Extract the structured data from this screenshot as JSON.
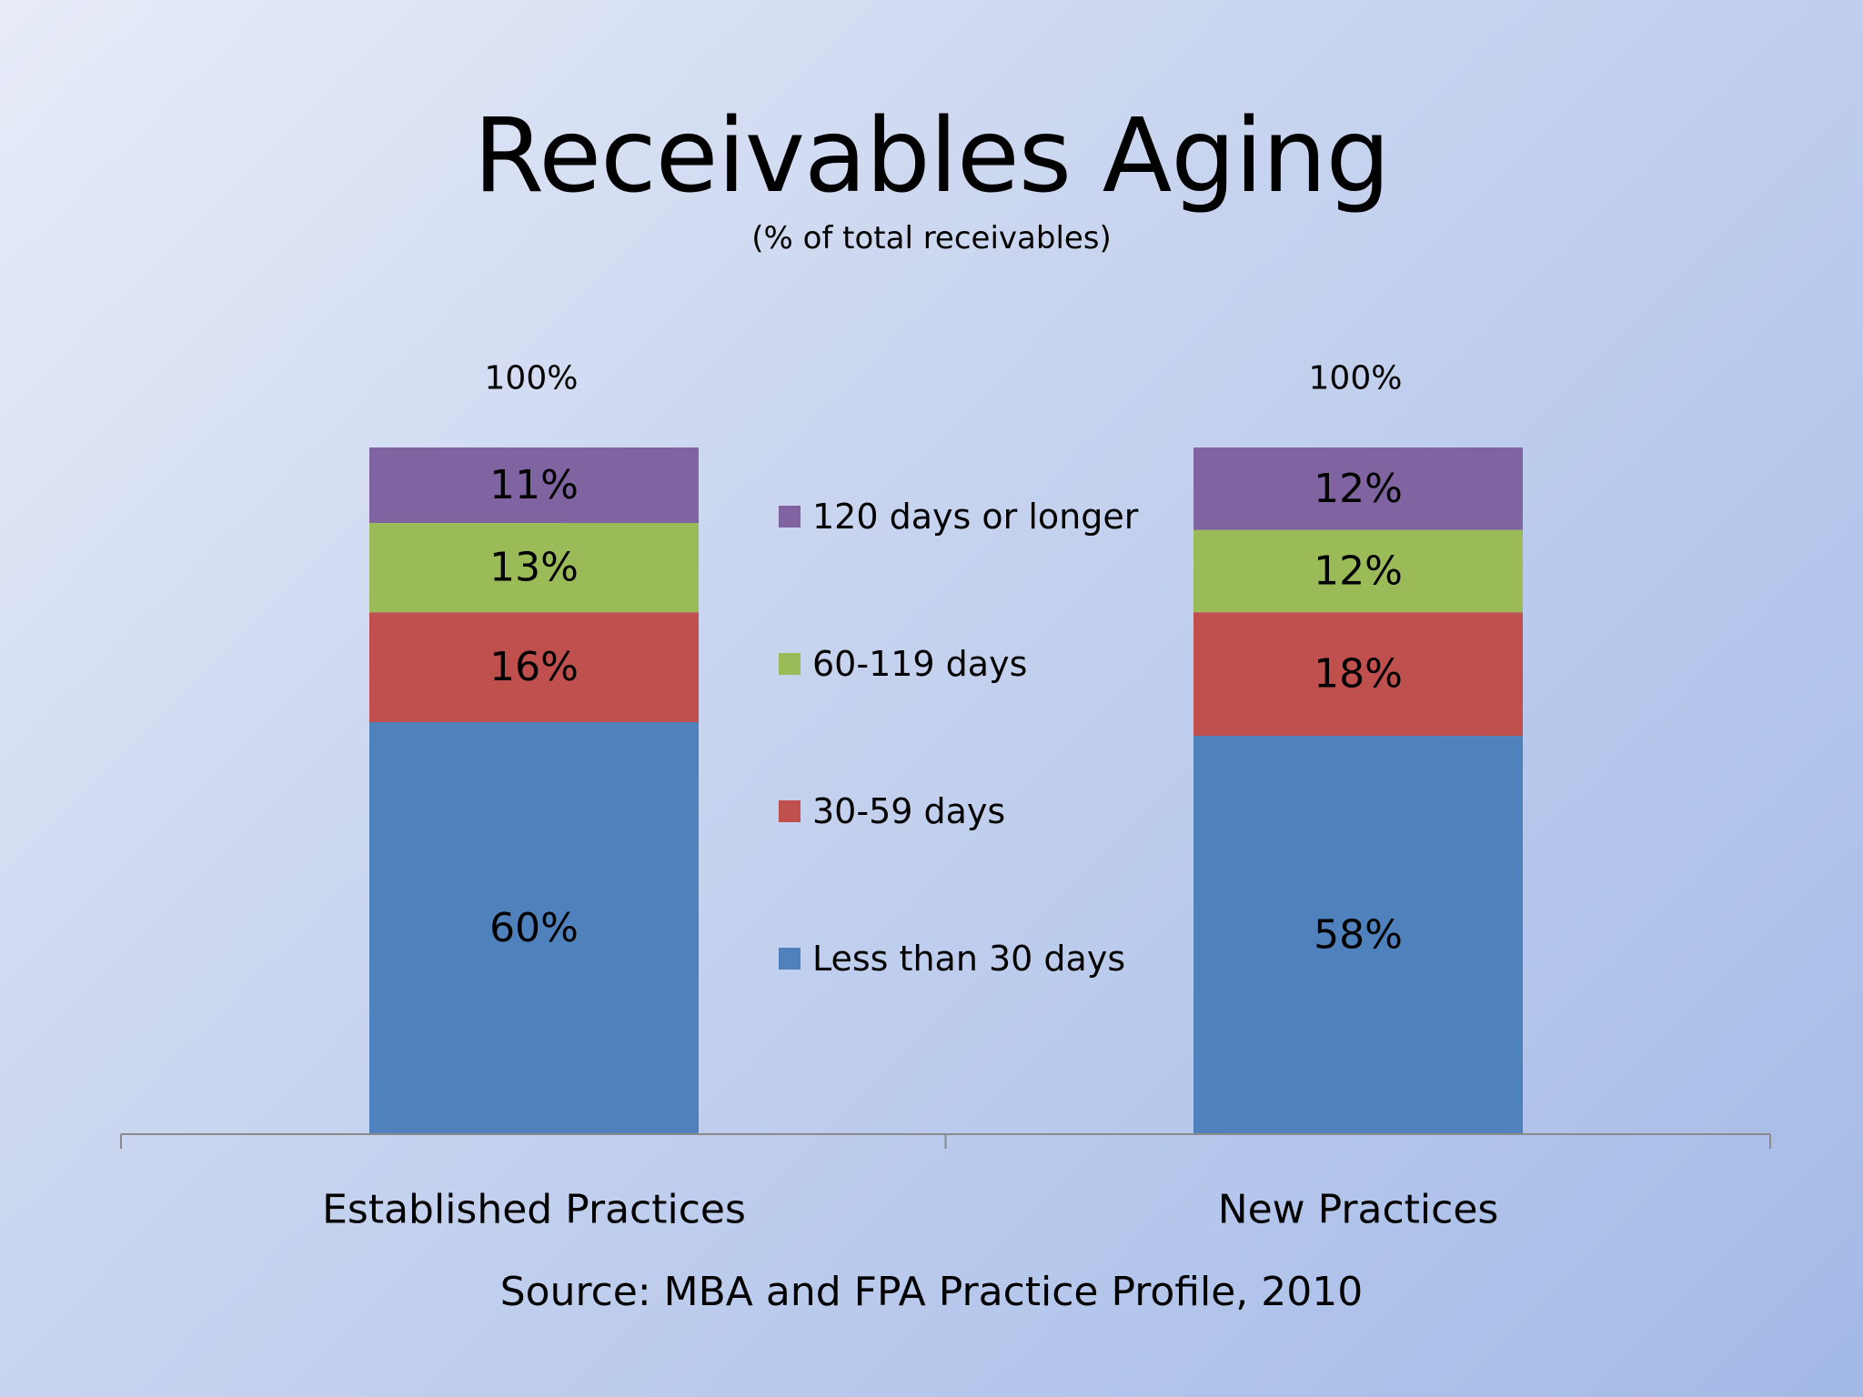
{
  "slide": {
    "title": "Receivables Aging",
    "subtitle": "(% of total receivables)",
    "source": "Source: MBA and FPA Practice Profile, 2010"
  },
  "chart_data": {
    "type": "bar",
    "stacked": true,
    "categories": [
      "Established Practices",
      "New Practices"
    ],
    "series": [
      {
        "name": "Less than 30 days",
        "values": [
          60,
          58
        ],
        "labels": [
          "60%",
          "58%"
        ],
        "color": "#4f81bd"
      },
      {
        "name": "30-59 days",
        "values": [
          16,
          18
        ],
        "labels": [
          "16%",
          "18%"
        ],
        "color": "#c0504d"
      },
      {
        "name": "60-119 days",
        "values": [
          13,
          12
        ],
        "labels": [
          "13%",
          "12%"
        ],
        "color": "#9bbb59"
      },
      {
        "name": "120 days or longer",
        "values": [
          11,
          12
        ],
        "labels": [
          "11%",
          "12%"
        ],
        "color": "#8064a2"
      }
    ],
    "totals": [
      "100%",
      "100%"
    ],
    "legend": {
      "placement": "center",
      "order": [
        "120 days or longer",
        "60-119 days",
        "30-59 days",
        "Less than 30 days"
      ]
    },
    "ylim": [
      0,
      100
    ],
    "grid": false,
    "title": "Receivables Aging",
    "subtitle": "(% of total receivables)"
  }
}
